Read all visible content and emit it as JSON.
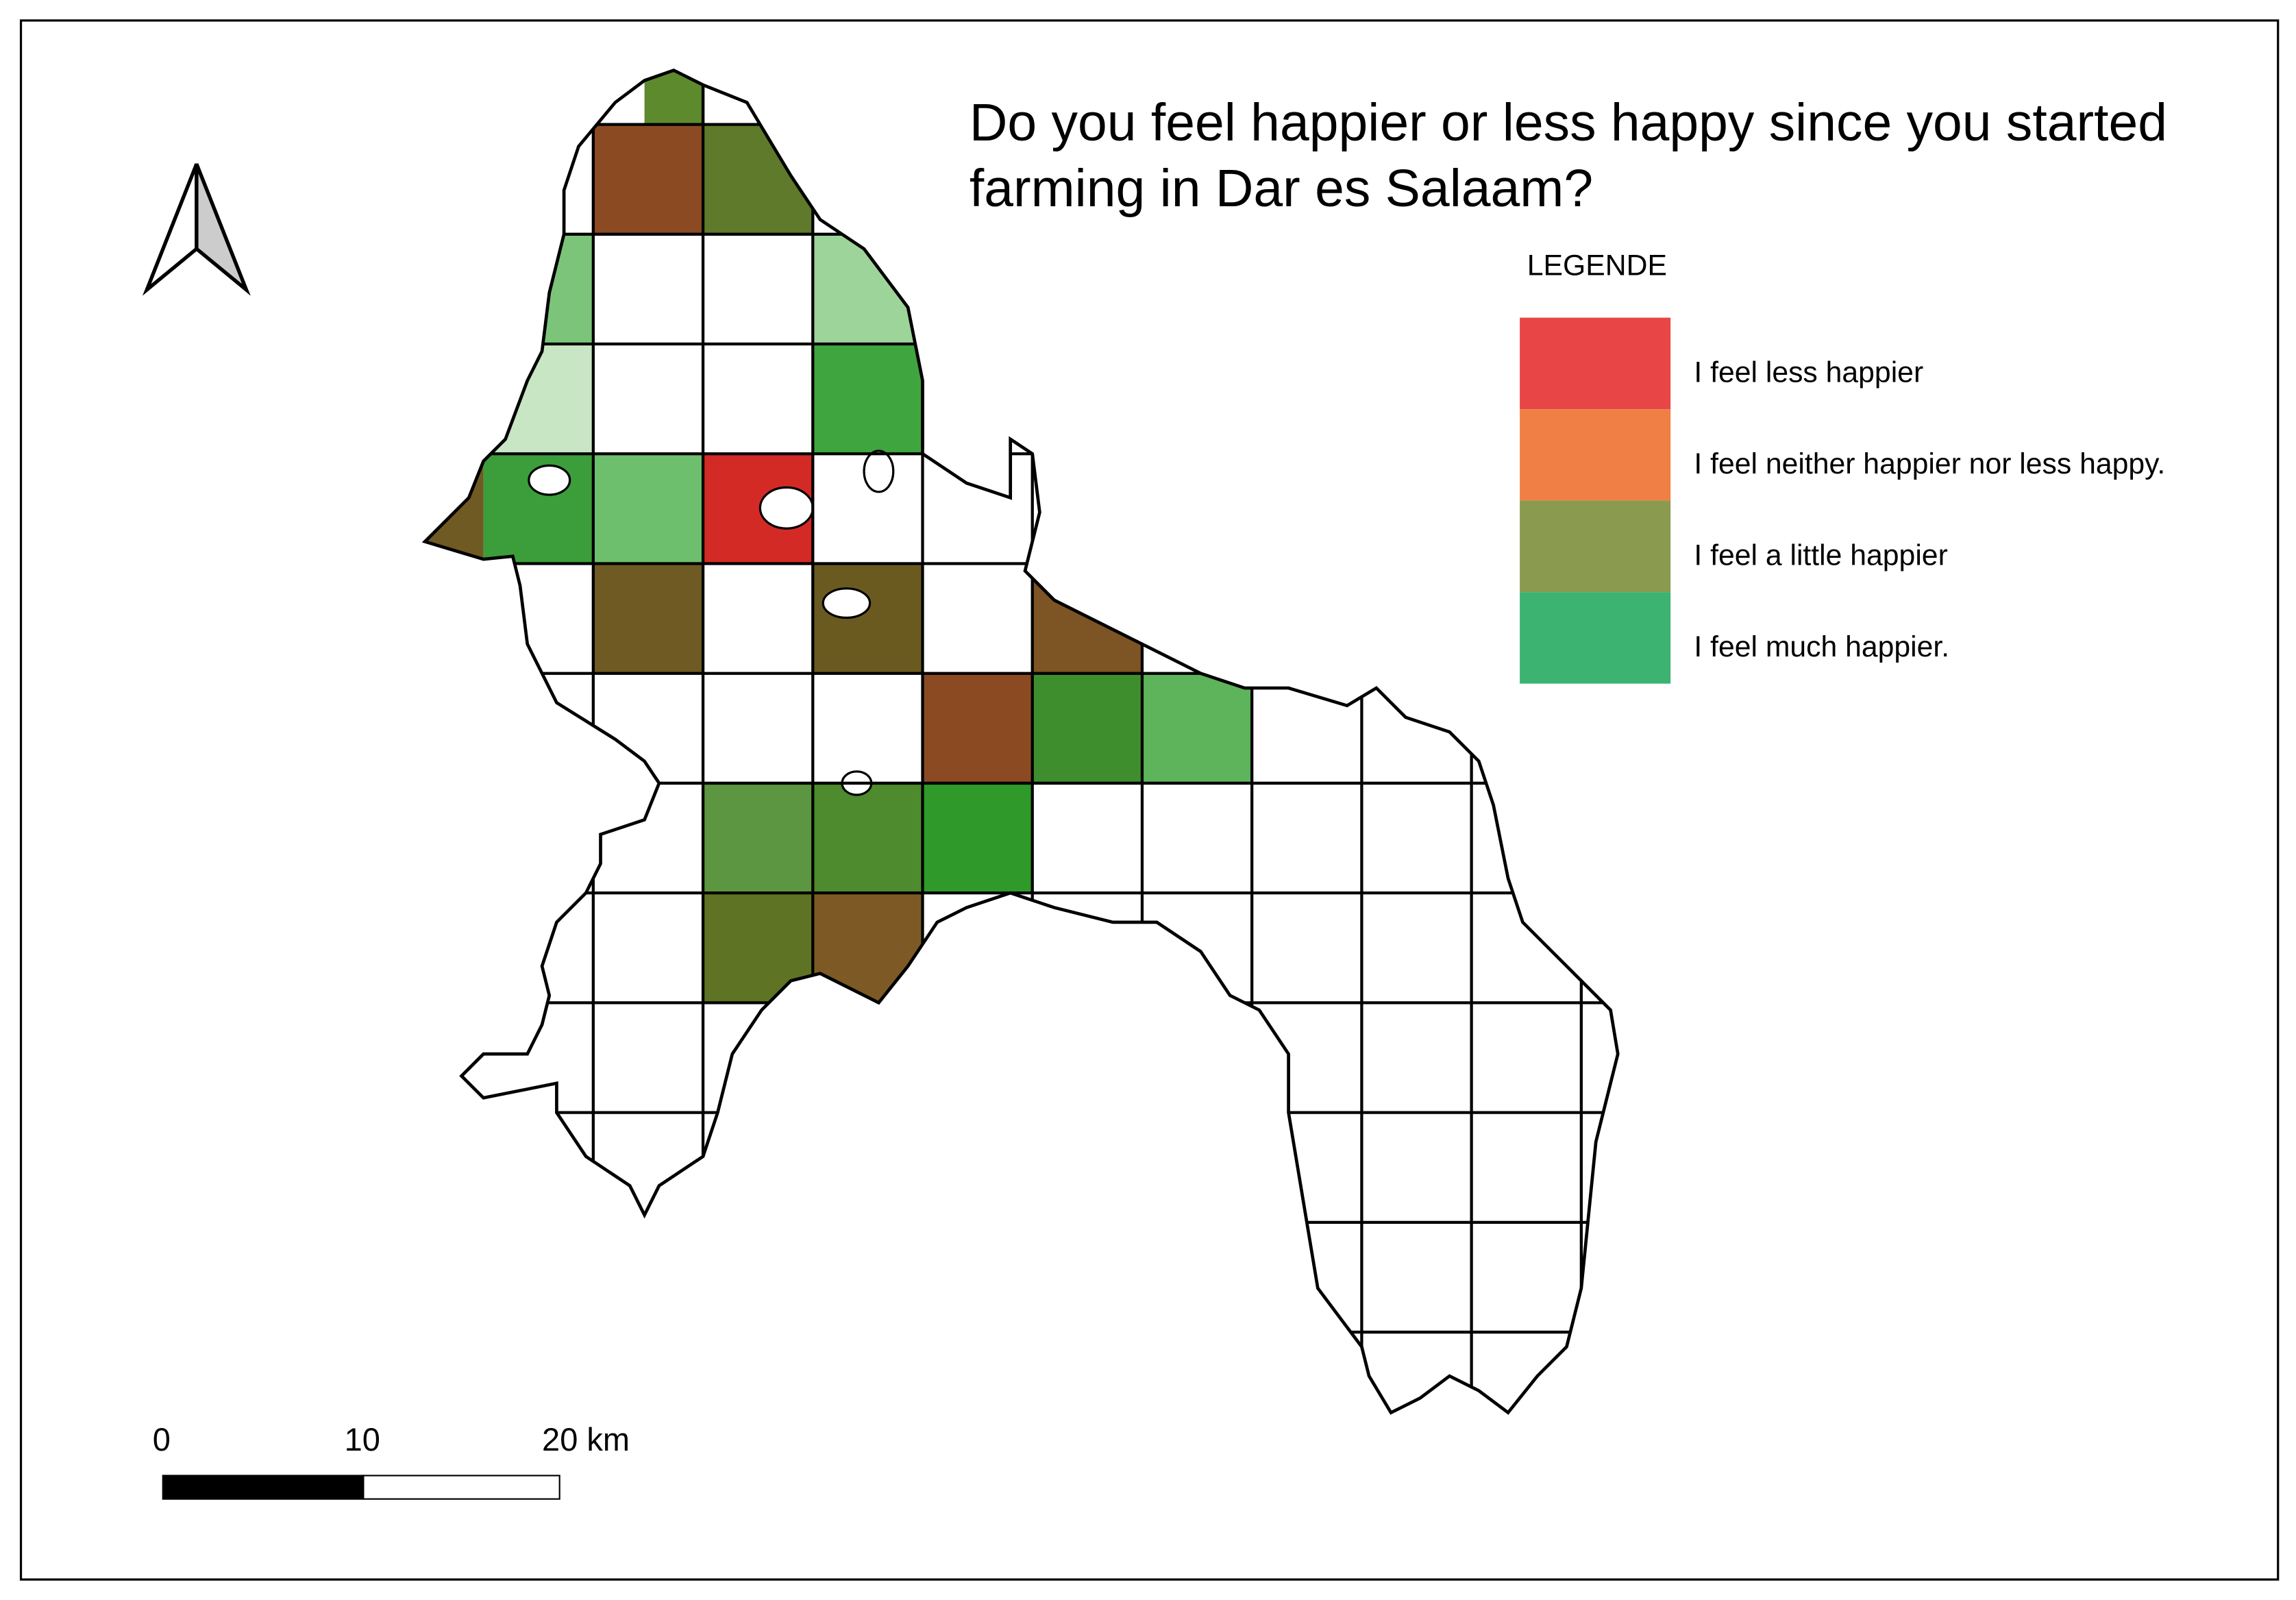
{
  "title": [
    "Do you feel happier or less happy since you started",
    "farming in Dar es Salaam?"
  ],
  "legend": {
    "title": "LEGENDE",
    "items": [
      {
        "label": "I feel less happier",
        "color": "#e84646"
      },
      {
        "label": "I feel neither happier nor less happy.",
        "color": "#f07f46"
      },
      {
        "label": "I feel a little happier",
        "color": "#8a9a4e"
      },
      {
        "label": "I feel much happier.",
        "color": "#3cb371"
      }
    ]
  },
  "scale_bar": {
    "labels": [
      "0",
      "10",
      "20 km"
    ]
  }
}
